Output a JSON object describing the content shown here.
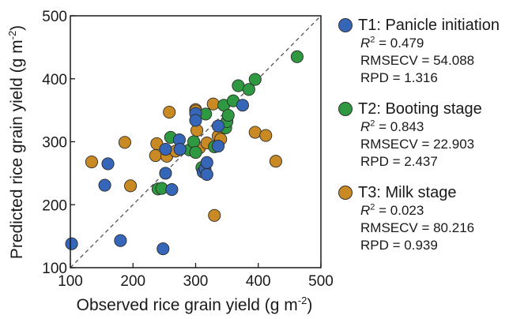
{
  "chart_data": {
    "type": "scatter",
    "xlabel_main": "Observed rice grain yield (g m",
    "ylabel_main": "Predicted rice grain yield (g m",
    "unit_exponent": "-2",
    "unit_close": ")",
    "xlim": [
      100,
      500
    ],
    "ylim": [
      100,
      500
    ],
    "xticks": [
      "100",
      "200",
      "300",
      "400",
      "500"
    ],
    "yticks": [
      "100",
      "200",
      "300",
      "400",
      "500"
    ],
    "reference_line": "1:1 dashed",
    "grid": false,
    "legend_position": "right",
    "series": [
      {
        "name": "T1: Panicle initiation",
        "color": "#3566b7",
        "stats": {
          "r2_symbol": "R",
          "r2_exp": "2",
          "r2": " = 0.479",
          "rmsecv": "RMSECV = 54.088",
          "rpd": "RPD = 1.316"
        },
        "points": [
          [
            102,
            138
          ],
          [
            155,
            231
          ],
          [
            160,
            265
          ],
          [
            180,
            143
          ],
          [
            248,
            130
          ],
          [
            252,
            288
          ],
          [
            252,
            250
          ],
          [
            262,
            224
          ],
          [
            274,
            303
          ],
          [
            275,
            288
          ],
          [
            300,
            345
          ],
          [
            300,
            334
          ],
          [
            312,
            252
          ],
          [
            315,
            257
          ],
          [
            318,
            248
          ],
          [
            318,
            267
          ],
          [
            336,
            325
          ],
          [
            336,
            293
          ],
          [
            375,
            358
          ]
        ]
      },
      {
        "name": "T2: Booting stage",
        "color": "#2e9940",
        "stats": {
          "r2_symbol": "R",
          "r2_exp": "2",
          "r2": " = 0.843",
          "rmsecv": "RMSECV = 22.903",
          "rpd": "RPD = 2.437"
        },
        "points": [
          [
            240,
            225
          ],
          [
            246,
            226
          ],
          [
            260,
            307
          ],
          [
            290,
            287
          ],
          [
            297,
            300
          ],
          [
            300,
            283
          ],
          [
            310,
            259
          ],
          [
            316,
            344
          ],
          [
            330,
            292
          ],
          [
            345,
            358
          ],
          [
            348,
            322
          ],
          [
            350,
            332
          ],
          [
            352,
            342
          ],
          [
            360,
            365
          ],
          [
            368,
            389
          ],
          [
            385,
            383
          ],
          [
            395,
            399
          ],
          [
            462,
            435
          ]
        ]
      },
      {
        "name": "T3: Milk stage",
        "color": "#c98a24",
        "stats": {
          "r2_symbol": "R",
          "r2_exp": "2",
          "r2": " = 0.023",
          "rmsecv": "RMSECV = 80.216",
          "rpd": "RPD = 0.939"
        },
        "points": [
          [
            134,
            268
          ],
          [
            187,
            299
          ],
          [
            196,
            230
          ],
          [
            236,
            278
          ],
          [
            238,
            297
          ],
          [
            254,
            277
          ],
          [
            258,
            347
          ],
          [
            268,
            285
          ],
          [
            300,
            351
          ],
          [
            300,
            349
          ],
          [
            302,
            318
          ],
          [
            306,
            290
          ],
          [
            318,
            298
          ],
          [
            328,
            360
          ],
          [
            330,
            183
          ],
          [
            336,
            309
          ],
          [
            340,
            304
          ],
          [
            395,
            315
          ],
          [
            412,
            310
          ],
          [
            428,
            269
          ]
        ]
      }
    ]
  }
}
